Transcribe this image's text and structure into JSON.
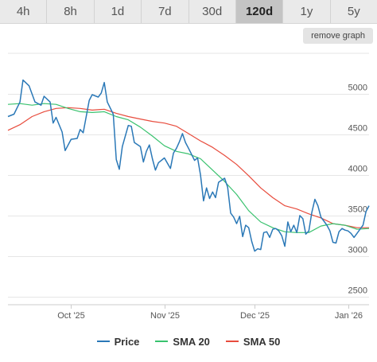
{
  "tabs": [
    {
      "label": "4h"
    },
    {
      "label": "8h"
    },
    {
      "label": "1d"
    },
    {
      "label": "7d"
    },
    {
      "label": "30d"
    },
    {
      "label": "120d"
    },
    {
      "label": "1y"
    },
    {
      "label": "5y"
    }
  ],
  "active_tab": "120d",
  "remove_button_label": "remove graph",
  "colors": {
    "price": "#2a78b7",
    "sma20": "#39c26e",
    "sma50": "#e84c3d",
    "grid": "#e6e6e6",
    "active_tab_bg": "#c4c4c4"
  },
  "chart_data": {
    "type": "line",
    "x_axis": {
      "labels": [
        "Oct '25",
        "Nov '25",
        "Dec '25",
        "Jan '26"
      ],
      "range": [
        "2025-09-10",
        "2026-01-08"
      ]
    },
    "y_axis": {
      "ticks": [
        2500,
        3000,
        3500,
        4000,
        4500,
        5000
      ],
      "range": [
        2400,
        5500
      ],
      "position": "right",
      "grid": true
    },
    "legend": {
      "position": "bottom"
    },
    "series": [
      {
        "name": "Price",
        "color": "#2a78b7",
        "points": [
          [
            "2025-09-10",
            4720
          ],
          [
            "2025-09-12",
            4750
          ],
          [
            "2025-09-14",
            4900
          ],
          [
            "2025-09-15",
            5170
          ],
          [
            "2025-09-17",
            5100
          ],
          [
            "2025-09-19",
            4900
          ],
          [
            "2025-09-21",
            4860
          ],
          [
            "2025-09-22",
            4970
          ],
          [
            "2025-09-24",
            4900
          ],
          [
            "2025-09-25",
            4640
          ],
          [
            "2025-09-26",
            4710
          ],
          [
            "2025-09-28",
            4530
          ],
          [
            "2025-09-29",
            4300
          ],
          [
            "2025-10-01",
            4440
          ],
          [
            "2025-10-03",
            4450
          ],
          [
            "2025-10-04",
            4560
          ],
          [
            "2025-10-05",
            4520
          ],
          [
            "2025-10-07",
            4920
          ],
          [
            "2025-10-08",
            4990
          ],
          [
            "2025-10-10",
            4960
          ],
          [
            "2025-10-11",
            5010
          ],
          [
            "2025-10-12",
            5140
          ],
          [
            "2025-10-13",
            4900
          ],
          [
            "2025-10-15",
            4750
          ],
          [
            "2025-10-16",
            4190
          ],
          [
            "2025-10-17",
            4070
          ],
          [
            "2025-10-18",
            4350
          ],
          [
            "2025-10-20",
            4610
          ],
          [
            "2025-10-21",
            4600
          ],
          [
            "2025-10-22",
            4400
          ],
          [
            "2025-10-24",
            4350
          ],
          [
            "2025-10-25",
            4160
          ],
          [
            "2025-10-26",
            4290
          ],
          [
            "2025-10-27",
            4370
          ],
          [
            "2025-10-28",
            4200
          ],
          [
            "2025-10-29",
            4060
          ],
          [
            "2025-10-30",
            4150
          ],
          [
            "2025-11-01",
            4210
          ],
          [
            "2025-11-03",
            4080
          ],
          [
            "2025-11-04",
            4270
          ],
          [
            "2025-11-05",
            4330
          ],
          [
            "2025-11-06",
            4410
          ],
          [
            "2025-11-07",
            4510
          ],
          [
            "2025-11-08",
            4400
          ],
          [
            "2025-11-09",
            4330
          ],
          [
            "2025-11-11",
            4180
          ],
          [
            "2025-11-12",
            4210
          ],
          [
            "2025-11-13",
            4000
          ],
          [
            "2025-11-14",
            3680
          ],
          [
            "2025-11-15",
            3840
          ],
          [
            "2025-11-16",
            3710
          ],
          [
            "2025-11-17",
            3790
          ],
          [
            "2025-11-18",
            3720
          ],
          [
            "2025-11-19",
            3910
          ],
          [
            "2025-11-21",
            3960
          ],
          [
            "2025-11-22",
            3850
          ],
          [
            "2025-11-23",
            3530
          ],
          [
            "2025-11-24",
            3480
          ],
          [
            "2025-11-25",
            3400
          ],
          [
            "2025-11-26",
            3490
          ],
          [
            "2025-11-27",
            3240
          ],
          [
            "2025-11-28",
            3380
          ],
          [
            "2025-11-29",
            3350
          ],
          [
            "2025-11-30",
            3180
          ],
          [
            "2025-12-01",
            3060
          ],
          [
            "2025-12-02",
            3090
          ],
          [
            "2025-12-03",
            3080
          ],
          [
            "2025-12-04",
            3290
          ],
          [
            "2025-12-05",
            3300
          ],
          [
            "2025-12-06",
            3230
          ],
          [
            "2025-12-07",
            3330
          ],
          [
            "2025-12-08",
            3340
          ],
          [
            "2025-12-09",
            3310
          ],
          [
            "2025-12-10",
            3250
          ],
          [
            "2025-12-11",
            3120
          ],
          [
            "2025-12-12",
            3420
          ],
          [
            "2025-12-13",
            3300
          ],
          [
            "2025-12-14",
            3380
          ],
          [
            "2025-12-15",
            3290
          ],
          [
            "2025-12-16",
            3500
          ],
          [
            "2025-12-17",
            3460
          ],
          [
            "2025-12-18",
            3270
          ],
          [
            "2025-12-19",
            3310
          ],
          [
            "2025-12-20",
            3540
          ],
          [
            "2025-12-21",
            3700
          ],
          [
            "2025-12-22",
            3620
          ],
          [
            "2025-12-23",
            3480
          ],
          [
            "2025-12-24",
            3430
          ],
          [
            "2025-12-25",
            3380
          ],
          [
            "2025-12-26",
            3310
          ],
          [
            "2025-12-27",
            3170
          ],
          [
            "2025-12-28",
            3160
          ],
          [
            "2025-12-29",
            3300
          ],
          [
            "2025-12-30",
            3340
          ],
          [
            "2025-12-31",
            3320
          ],
          [
            "2026-01-01",
            3310
          ],
          [
            "2026-01-02",
            3280
          ],
          [
            "2026-01-03",
            3230
          ],
          [
            "2026-01-04",
            3280
          ],
          [
            "2026-01-05",
            3330
          ],
          [
            "2026-01-06",
            3380
          ],
          [
            "2026-01-07",
            3550
          ],
          [
            "2026-01-08",
            3620
          ]
        ]
      },
      {
        "name": "SMA 20",
        "color": "#39c26e",
        "points": [
          [
            "2025-09-10",
            4870
          ],
          [
            "2025-09-14",
            4880
          ],
          [
            "2025-09-18",
            4860
          ],
          [
            "2025-09-22",
            4880
          ],
          [
            "2025-09-26",
            4870
          ],
          [
            "2025-09-30",
            4820
          ],
          [
            "2025-10-04",
            4780
          ],
          [
            "2025-10-08",
            4770
          ],
          [
            "2025-10-12",
            4780
          ],
          [
            "2025-10-16",
            4720
          ],
          [
            "2025-10-20",
            4680
          ],
          [
            "2025-10-24",
            4590
          ],
          [
            "2025-10-28",
            4480
          ],
          [
            "2025-11-01",
            4360
          ],
          [
            "2025-11-05",
            4290
          ],
          [
            "2025-11-09",
            4260
          ],
          [
            "2025-11-13",
            4200
          ],
          [
            "2025-11-17",
            4060
          ],
          [
            "2025-11-21",
            3920
          ],
          [
            "2025-11-25",
            3760
          ],
          [
            "2025-11-29",
            3560
          ],
          [
            "2025-12-03",
            3420
          ],
          [
            "2025-12-07",
            3350
          ],
          [
            "2025-12-11",
            3300
          ],
          [
            "2025-12-15",
            3290
          ],
          [
            "2025-12-19",
            3290
          ],
          [
            "2025-12-23",
            3370
          ],
          [
            "2025-12-27",
            3400
          ],
          [
            "2025-12-31",
            3380
          ],
          [
            "2026-01-04",
            3330
          ],
          [
            "2026-01-08",
            3340
          ]
        ]
      },
      {
        "name": "SMA 50",
        "color": "#e84c3d",
        "points": [
          [
            "2025-09-10",
            4550
          ],
          [
            "2025-09-14",
            4620
          ],
          [
            "2025-09-18",
            4720
          ],
          [
            "2025-09-22",
            4780
          ],
          [
            "2025-09-26",
            4820
          ],
          [
            "2025-09-30",
            4830
          ],
          [
            "2025-10-04",
            4820
          ],
          [
            "2025-10-08",
            4800
          ],
          [
            "2025-10-12",
            4810
          ],
          [
            "2025-10-16",
            4760
          ],
          [
            "2025-10-20",
            4720
          ],
          [
            "2025-10-24",
            4690
          ],
          [
            "2025-10-28",
            4660
          ],
          [
            "2025-11-01",
            4640
          ],
          [
            "2025-11-05",
            4600
          ],
          [
            "2025-11-09",
            4510
          ],
          [
            "2025-11-13",
            4420
          ],
          [
            "2025-11-17",
            4340
          ],
          [
            "2025-11-21",
            4240
          ],
          [
            "2025-11-25",
            4130
          ],
          [
            "2025-11-29",
            3990
          ],
          [
            "2025-12-03",
            3840
          ],
          [
            "2025-12-07",
            3720
          ],
          [
            "2025-12-11",
            3620
          ],
          [
            "2025-12-15",
            3580
          ],
          [
            "2025-12-19",
            3520
          ],
          [
            "2025-12-23",
            3470
          ],
          [
            "2025-12-27",
            3400
          ],
          [
            "2025-12-31",
            3380
          ],
          [
            "2026-01-04",
            3350
          ],
          [
            "2026-01-08",
            3350
          ]
        ]
      }
    ]
  }
}
